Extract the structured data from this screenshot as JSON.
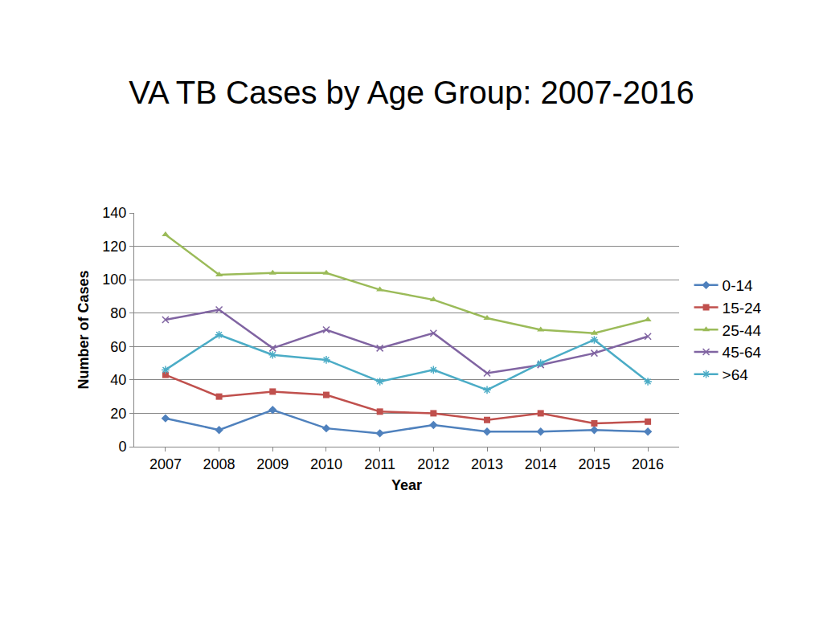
{
  "chart_data": {
    "type": "line",
    "title": "VA TB Cases by Age Group: 2007-2016",
    "x_label": "Year",
    "y_label": "Number of Cases",
    "categories": [
      "2007",
      "2008",
      "2009",
      "2010",
      "2011",
      "2012",
      "2013",
      "2014",
      "2015",
      "2016"
    ],
    "series": [
      {
        "name": "0-14",
        "color": "#4f81bd",
        "marker": "diamond",
        "values": [
          17,
          10,
          22,
          11,
          8,
          13,
          9,
          9,
          10,
          9
        ]
      },
      {
        "name": "15-24",
        "color": "#c0504d",
        "marker": "square",
        "values": [
          43,
          30,
          33,
          31,
          21,
          20,
          16,
          20,
          14,
          15
        ]
      },
      {
        "name": "25-44",
        "color": "#9bbb59",
        "marker": "triangle-up",
        "values": [
          127,
          103,
          104,
          104,
          94,
          88,
          77,
          70,
          68,
          76
        ]
      },
      {
        "name": "45-64",
        "color": "#8064a2",
        "marker": "x-thin",
        "values": [
          76,
          82,
          59,
          70,
          59,
          68,
          44,
          49,
          56,
          66
        ]
      },
      {
        "name": ">64",
        "color": "#4bacc6",
        "marker": "asterisk",
        "values": [
          46,
          67,
          55,
          52,
          39,
          46,
          34,
          50,
          64,
          39
        ]
      }
    ],
    "ylim": [
      0,
      140
    ],
    "yticks": [
      0,
      20,
      40,
      60,
      80,
      100,
      120,
      140
    ],
    "grid": true,
    "legend": "right"
  }
}
